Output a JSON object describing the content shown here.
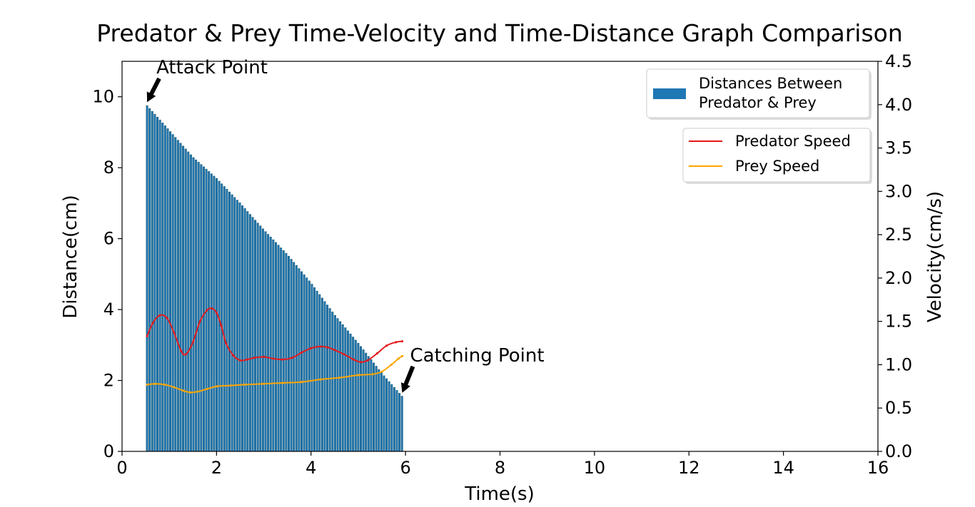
{
  "chart_data": {
    "type": "bar",
    "title": "Predator & Prey Time-Velocity and Time-Distance Graph Comparison",
    "xlabel": "Time(s)",
    "ylabel": "Distance(cm)",
    "ylabel_right": "Velocity(cm/s)",
    "xlim": [
      0,
      16
    ],
    "ylim": [
      0,
      11
    ],
    "ylim_right": [
      0,
      4.5
    ],
    "x_ticks": [
      "0",
      "2",
      "4",
      "6",
      "8",
      "10",
      "12",
      "14",
      "16"
    ],
    "y_ticks": [
      "0",
      "2",
      "4",
      "6",
      "8",
      "10"
    ],
    "y_ticks_right": [
      "0.0",
      "0.5",
      "1.0",
      "1.5",
      "2.0",
      "2.5",
      "3.0",
      "3.5",
      "4.0",
      "4.5"
    ],
    "grid": false,
    "bars": {
      "name": "Distances Between Predator & Prey",
      "legend_lines": [
        "Distances Between",
        "Predator & Prey"
      ],
      "color": "#1f77b4",
      "edge_color": "#1a5c7a",
      "x_start": 0.53,
      "x_end": 5.93,
      "step": 0.0545,
      "distance_keyframes": {
        "t": [
          0.53,
          0.7,
          1.0,
          1.5,
          2.0,
          2.5,
          3.0,
          3.5,
          4.0,
          4.5,
          5.0,
          5.5,
          5.93
        ],
        "d": [
          9.75,
          9.5,
          9.05,
          8.3,
          7.7,
          7.0,
          6.25,
          5.55,
          4.75,
          3.85,
          3.05,
          2.2,
          1.55
        ]
      }
    },
    "series": [
      {
        "name": "Predator Speed",
        "axis": "right",
        "color": "#e41a1c",
        "x": [
          0.53,
          0.65,
          0.8,
          0.95,
          1.1,
          1.25,
          1.35,
          1.5,
          1.65,
          1.8,
          1.9,
          2.0,
          2.1,
          2.2,
          2.35,
          2.5,
          2.65,
          2.8,
          3.0,
          3.2,
          3.4,
          3.6,
          3.8,
          4.0,
          4.2,
          4.35,
          4.5,
          4.7,
          4.9,
          5.05,
          5.2,
          5.4,
          5.6,
          5.8,
          5.93
        ],
        "y": [
          1.33,
          1.48,
          1.57,
          1.54,
          1.37,
          1.16,
          1.12,
          1.26,
          1.5,
          1.63,
          1.65,
          1.6,
          1.45,
          1.25,
          1.11,
          1.05,
          1.06,
          1.08,
          1.09,
          1.07,
          1.06,
          1.08,
          1.14,
          1.19,
          1.21,
          1.2,
          1.17,
          1.12,
          1.06,
          1.03,
          1.05,
          1.13,
          1.22,
          1.26,
          1.27
        ]
      },
      {
        "name": "Prey Speed",
        "axis": "right",
        "color": "#ffa500",
        "x": [
          0.53,
          0.7,
          0.9,
          1.1,
          1.3,
          1.45,
          1.6,
          1.8,
          2.0,
          2.3,
          2.6,
          3.0,
          3.4,
          3.8,
          4.2,
          4.6,
          5.0,
          5.3,
          5.5,
          5.7,
          5.85,
          5.93
        ],
        "y": [
          0.77,
          0.78,
          0.77,
          0.74,
          0.7,
          0.68,
          0.69,
          0.72,
          0.75,
          0.76,
          0.77,
          0.78,
          0.79,
          0.8,
          0.83,
          0.85,
          0.88,
          0.89,
          0.92,
          1.0,
          1.07,
          1.1
        ]
      }
    ],
    "annotations": [
      {
        "text": "Attack Point",
        "x": 0.53,
        "y": 9.75
      },
      {
        "text": "Catching Point",
        "x": 5.93,
        "y": 1.55
      }
    ],
    "legends": [
      {
        "placement": "top-right",
        "entries": [
          "Distances Between Predator & Prey"
        ]
      },
      {
        "placement": "upper-right",
        "entries": [
          "Predator Speed",
          "Prey Speed"
        ]
      }
    ]
  }
}
